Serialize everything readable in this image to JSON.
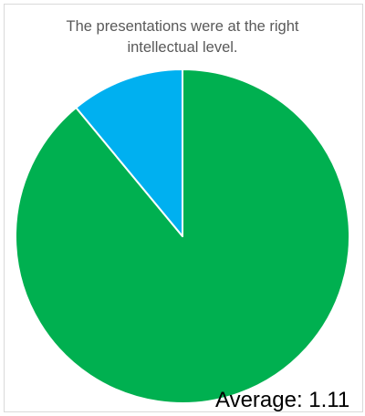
{
  "chart_data": {
    "type": "pie",
    "title_lines": [
      "The presentations were at the right",
      "intellectual level."
    ],
    "slices": [
      {
        "value": 89,
        "color": "#00B050"
      },
      {
        "value": 11,
        "color": "#00B0F0"
      }
    ],
    "annotation": "Average: 1.11",
    "legend": "none"
  }
}
